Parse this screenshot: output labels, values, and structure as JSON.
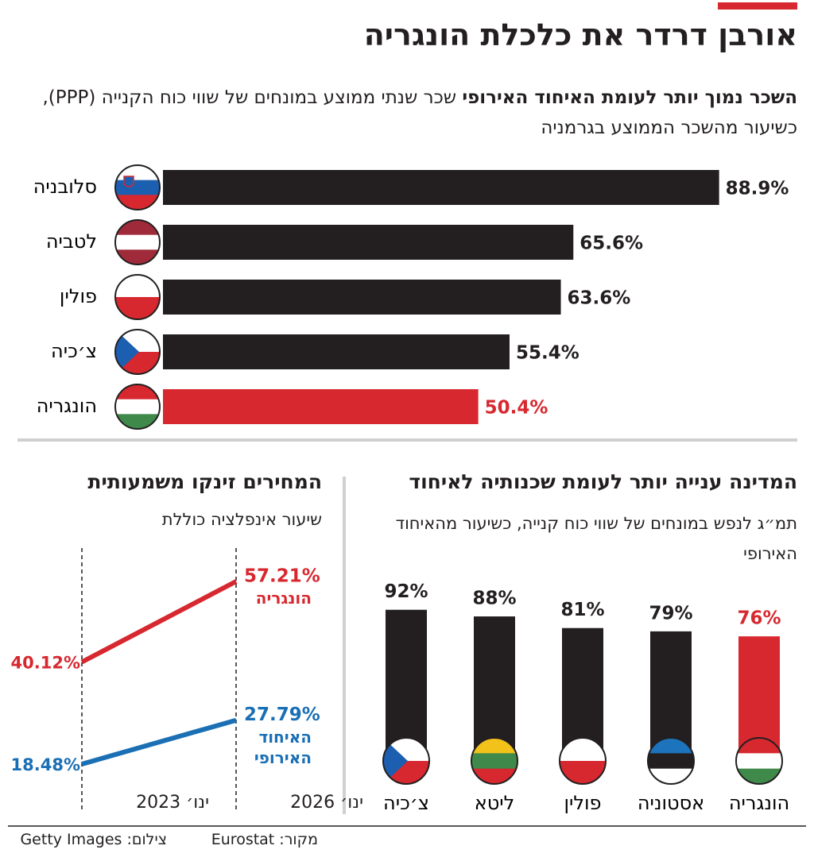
{
  "title": "אורבן דרדר את כלכלת הונגריה",
  "chart_data": [
    {
      "type": "barh",
      "title": "השכר נמוך יותר לעומת האיחוד האירופי",
      "subtitle": "שכר שנתי ממוצע במונחים של שווי כוח הקנייה (PPP), כשיעור מהשכר הממוצע בגרמניה",
      "categories": [
        "סלובניה",
        "לטביה",
        "פולין",
        "צ׳כיה",
        "הונגריה"
      ],
      "values": [
        88.9,
        65.6,
        63.6,
        55.4,
        50.4
      ],
      "value_labels": [
        "88.9%",
        "65.6%",
        "63.6%",
        "55.4%",
        "50.4%"
      ],
      "colors": [
        "#231f20",
        "#231f20",
        "#231f20",
        "#231f20",
        "#d7282f"
      ]
    },
    {
      "type": "bar",
      "title": "המדינה ענייה יותר לעומת שכנותיה לאיחוד",
      "subtitle": "תמ״ג לנפש במונחים של שווי כוח קנייה, כשיעור מהאיחוד האירופי",
      "categories": [
        "צ׳כיה",
        "ליטא",
        "פולין",
        "אסטוניה",
        "הונגריה"
      ],
      "values": [
        92,
        88,
        81,
        79,
        76
      ],
      "value_labels": [
        "92%",
        "88%",
        "81%",
        "79%",
        "76%"
      ],
      "colors": [
        "#231f20",
        "#231f20",
        "#231f20",
        "#231f20",
        "#d7282f"
      ]
    },
    {
      "type": "line",
      "title": "המחירים זינקו משמעותית",
      "subtitle": "שיעור אינפלציה כוללת",
      "x": [
        "ינו׳ 2023",
        "ינו׳ 2026"
      ],
      "series": [
        {
          "name": "הונגריה",
          "color": "#d7282f",
          "values": [
            40.12,
            57.21
          ],
          "value_labels": [
            "40.12%",
            "57.21%"
          ]
        },
        {
          "name": "האיחוד האירופי",
          "color": "#1a6fb5",
          "values": [
            18.48,
            27.79
          ],
          "value_labels": [
            "18.48%",
            "27.79%"
          ]
        }
      ]
    }
  ],
  "footer": {
    "source": "מקור: Eurostat",
    "photo": "צילום: Getty Images"
  }
}
